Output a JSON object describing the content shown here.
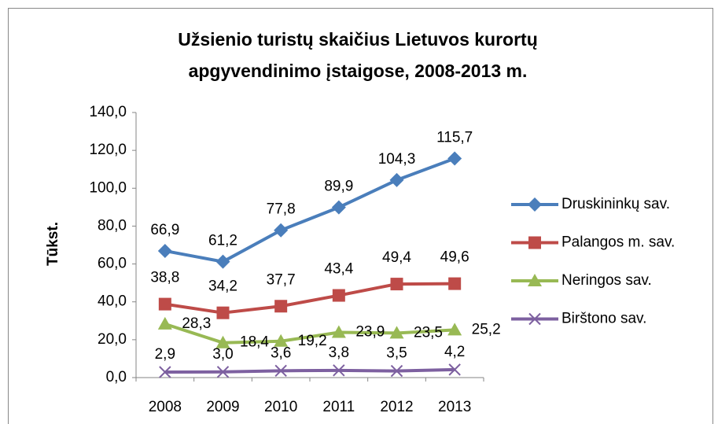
{
  "chart_data": {
    "type": "line",
    "title": "Užsienio turistų skaičius Lietuvos kurortų\napgyvendinimo įstaigose, 2008-2013 m.",
    "y_label": "Tūkst.",
    "categories": [
      "2008",
      "2009",
      "2010",
      "2011",
      "2012",
      "2013"
    ],
    "series": [
      {
        "name": "Druskininkų sav.",
        "color": "#4a7ebb",
        "marker": "diamond",
        "values": [
          66.9,
          61.2,
          77.8,
          89.9,
          104.3,
          115.7
        ],
        "value_labels": [
          "66,9",
          "61,2",
          "77,8",
          "89,9",
          "104,3",
          "115,7"
        ]
      },
      {
        "name": "Palangos m. sav.",
        "color": "#be4b48",
        "marker": "square",
        "values": [
          38.8,
          34.2,
          37.7,
          43.4,
          49.4,
          49.6
        ],
        "value_labels": [
          "38,8",
          "34,2",
          "37,7",
          "43,4",
          "49,4",
          "49,6"
        ]
      },
      {
        "name": "Neringos sav.",
        "color": "#98b954",
        "marker": "triangle",
        "values": [
          28.3,
          18.4,
          19.2,
          23.9,
          23.5,
          25.2
        ],
        "value_labels": [
          "28,3",
          "18,4",
          "19,2",
          "23,9",
          "23,5",
          "25,2"
        ]
      },
      {
        "name": "Birštono sav.",
        "color": "#7d60a0",
        "marker": "x",
        "values": [
          2.9,
          3.0,
          3.6,
          3.8,
          3.5,
          4.2
        ],
        "value_labels": [
          "2,9",
          "3,0",
          "3,6",
          "3,8",
          "3,5",
          "4,2"
        ]
      }
    ],
    "ylim": [
      0,
      140
    ],
    "yticks": [
      {
        "value": 0,
        "label": "0,0"
      },
      {
        "value": 20,
        "label": "20,0"
      },
      {
        "value": 40,
        "label": "40,0"
      },
      {
        "value": 60,
        "label": "60,0"
      },
      {
        "value": 80,
        "label": "80,0"
      },
      {
        "value": 100,
        "label": "100,0"
      },
      {
        "value": 120,
        "label": "120,0"
      },
      {
        "value": 140,
        "label": "140,0"
      }
    ],
    "grid": false,
    "legend": "right"
  }
}
